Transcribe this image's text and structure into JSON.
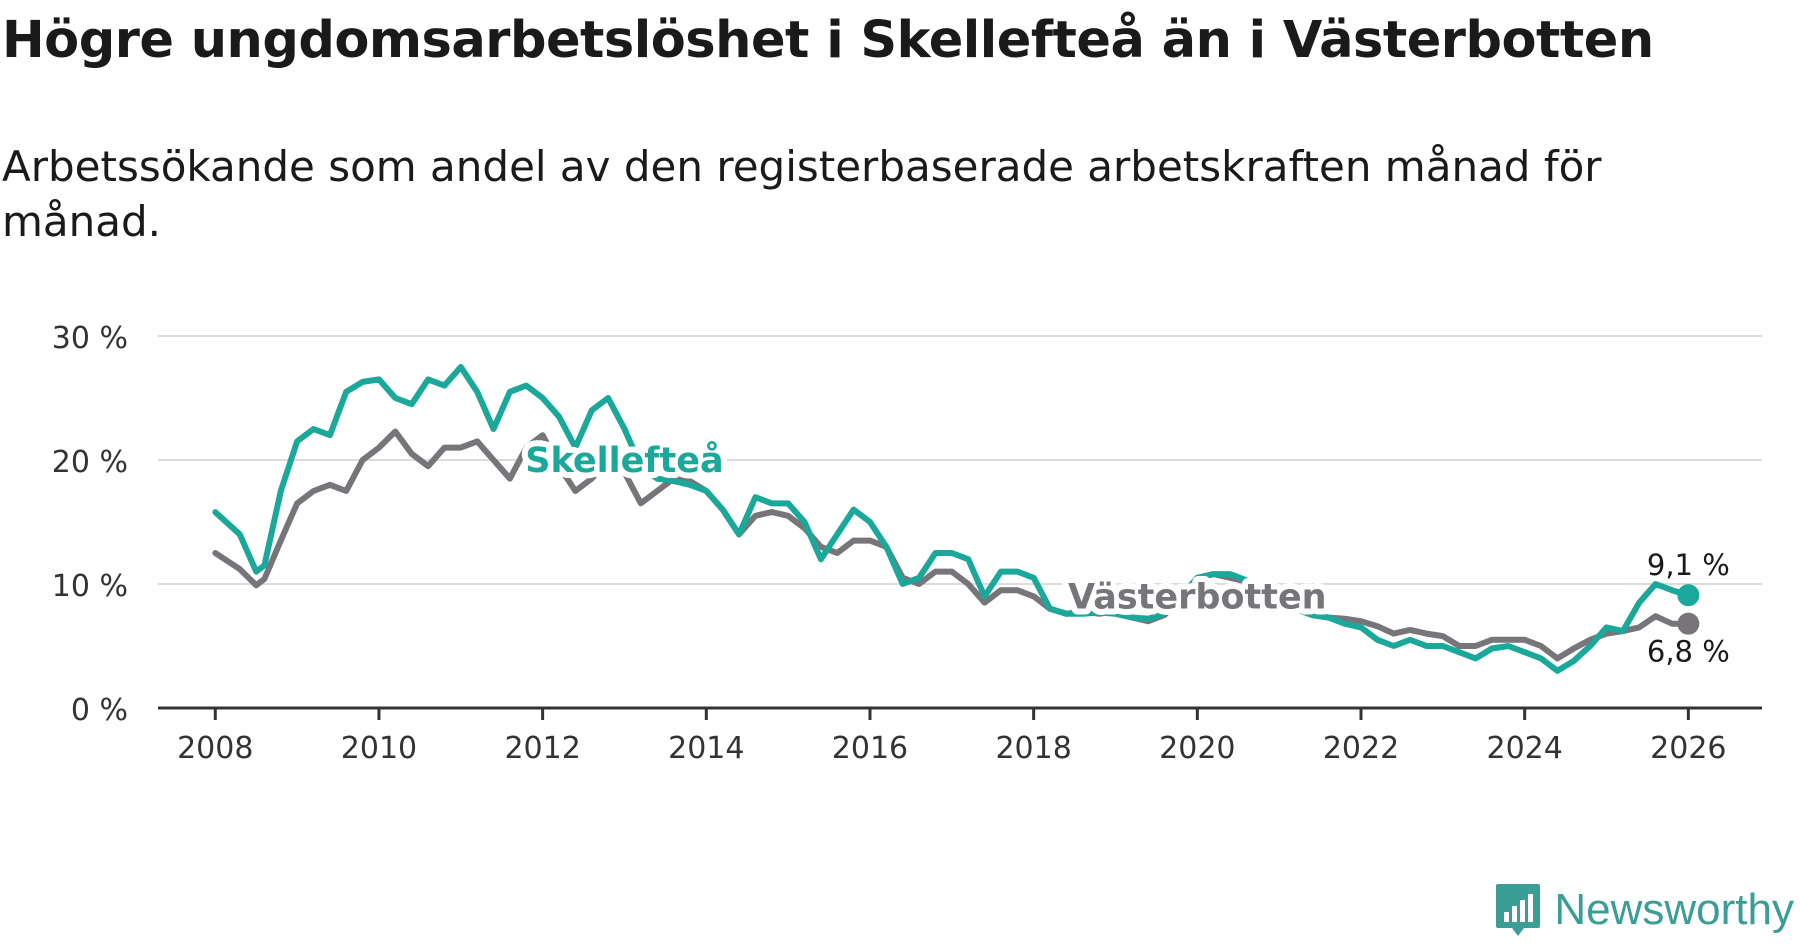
{
  "title": "Högre ungdomsarbetslöshet i Skellefteå än i Västerbotten",
  "subtitle": "Arbetssökande som andel av den registerbaserade arbetskraften månad för månad.",
  "logo": {
    "text": "Newsworthy",
    "icon": "newsworthy-logo-icon"
  },
  "colors": {
    "skelleftea": "#1aa89a",
    "vasterbotten": "#77757a",
    "grid": "#dcdcdc",
    "axis": "#333333"
  },
  "chart_data": {
    "type": "line",
    "title": "Högre ungdomsarbetslöshet i Skellefteå än i Västerbotten",
    "xlabel": "",
    "ylabel": "",
    "xlim": [
      2007.3,
      2026.9
    ],
    "ylim": [
      0,
      30
    ],
    "x_ticks": [
      2008,
      2010,
      2012,
      2014,
      2016,
      2018,
      2020,
      2022,
      2024,
      2026
    ],
    "y_ticks": [
      0,
      10,
      20,
      30
    ],
    "y_tick_labels": [
      "0 %",
      "10 %",
      "20 %",
      "30 %"
    ],
    "grid": true,
    "series": [
      {
        "name": "Västerbotten",
        "label": "Västerbotten",
        "end_label": "6,8 %",
        "x": [
          2008.0,
          2008.3,
          2008.5,
          2008.6,
          2008.8,
          2009.0,
          2009.2,
          2009.4,
          2009.6,
          2009.8,
          2010.0,
          2010.2,
          2010.4,
          2010.6,
          2010.8,
          2011.0,
          2011.2,
          2011.4,
          2011.6,
          2011.8,
          2012.0,
          2012.2,
          2012.4,
          2012.6,
          2012.8,
          2013.0,
          2013.2,
          2013.4,
          2013.6,
          2013.8,
          2014.0,
          2014.2,
          2014.4,
          2014.6,
          2014.8,
          2015.0,
          2015.2,
          2015.4,
          2015.6,
          2015.8,
          2016.0,
          2016.2,
          2016.4,
          2016.6,
          2016.8,
          2017.0,
          2017.2,
          2017.4,
          2017.6,
          2017.8,
          2018.0,
          2018.2,
          2018.4,
          2018.6,
          2018.8,
          2019.0,
          2019.2,
          2019.4,
          2019.6,
          2019.8,
          2020.0,
          2020.2,
          2020.4,
          2020.6,
          2020.8,
          2021.0,
          2021.2,
          2021.4,
          2021.6,
          2021.8,
          2022.0,
          2022.2,
          2022.4,
          2022.6,
          2022.8,
          2023.0,
          2023.2,
          2023.4,
          2023.6,
          2023.8,
          2024.0,
          2024.2,
          2024.4,
          2024.6,
          2024.8,
          2025.0,
          2025.2,
          2025.4,
          2025.6,
          2025.8,
          2026.0
        ],
        "y": [
          12.5,
          11.2,
          9.9,
          10.4,
          13.5,
          16.5,
          17.5,
          18.0,
          17.5,
          20.0,
          21.0,
          22.3,
          20.5,
          19.5,
          21.0,
          21.0,
          21.5,
          20.0,
          18.5,
          21.0,
          22.0,
          19.5,
          17.5,
          18.5,
          20.0,
          19.0,
          16.5,
          17.5,
          18.5,
          18.3,
          17.5,
          16.0,
          14.0,
          15.5,
          15.8,
          15.5,
          14.5,
          13.0,
          12.5,
          13.5,
          13.5,
          13.0,
          10.5,
          10.0,
          11.0,
          11.0,
          10.0,
          8.5,
          9.5,
          9.5,
          9.0,
          8.0,
          7.6,
          7.8,
          7.6,
          7.8,
          7.3,
          7.0,
          7.5,
          9.0,
          10.5,
          10.8,
          10.5,
          10.2,
          9.8,
          9.0,
          8.0,
          7.5,
          7.3,
          7.2,
          7.0,
          6.6,
          6.0,
          6.3,
          6.0,
          5.8,
          5.0,
          5.0,
          5.5,
          5.5,
          5.5,
          5.0,
          4.0,
          4.8,
          5.5,
          6.0,
          6.2,
          6.5,
          7.4,
          6.8,
          6.8
        ]
      },
      {
        "name": "Skellefteå",
        "label": "Skellefteå",
        "end_label": "9,1 %",
        "x": [
          2008.0,
          2008.3,
          2008.5,
          2008.6,
          2008.8,
          2009.0,
          2009.2,
          2009.4,
          2009.6,
          2009.8,
          2010.0,
          2010.2,
          2010.4,
          2010.6,
          2010.8,
          2011.0,
          2011.2,
          2011.4,
          2011.6,
          2011.8,
          2012.0,
          2012.2,
          2012.4,
          2012.6,
          2012.8,
          2013.0,
          2013.2,
          2013.4,
          2013.6,
          2013.8,
          2014.0,
          2014.2,
          2014.4,
          2014.6,
          2014.8,
          2015.0,
          2015.2,
          2015.4,
          2015.6,
          2015.8,
          2016.0,
          2016.2,
          2016.4,
          2016.6,
          2016.8,
          2017.0,
          2017.2,
          2017.4,
          2017.6,
          2017.8,
          2018.0,
          2018.2,
          2018.4,
          2018.6,
          2018.8,
          2019.0,
          2019.2,
          2019.4,
          2019.6,
          2019.8,
          2020.0,
          2020.2,
          2020.4,
          2020.6,
          2020.8,
          2021.0,
          2021.2,
          2021.4,
          2021.6,
          2021.8,
          2022.0,
          2022.2,
          2022.4,
          2022.6,
          2022.8,
          2023.0,
          2023.2,
          2023.4,
          2023.6,
          2023.8,
          2024.0,
          2024.2,
          2024.4,
          2024.6,
          2024.8,
          2025.0,
          2025.2,
          2025.4,
          2025.6,
          2025.8,
          2026.0
        ],
        "y": [
          15.8,
          14.0,
          11.0,
          11.5,
          17.5,
          21.5,
          22.5,
          22.0,
          25.5,
          26.3,
          26.5,
          25.0,
          24.5,
          26.5,
          26.0,
          27.5,
          25.5,
          22.5,
          25.5,
          26.0,
          25.0,
          23.5,
          21.0,
          24.0,
          25.0,
          22.5,
          19.5,
          18.5,
          18.3,
          18.0,
          17.5,
          16.0,
          14.0,
          17.0,
          16.5,
          16.5,
          15.0,
          12.0,
          14.0,
          16.0,
          15.0,
          13.0,
          10.0,
          10.5,
          12.5,
          12.5,
          12.0,
          9.0,
          11.0,
          11.0,
          10.5,
          8.0,
          7.6,
          7.6,
          7.7,
          7.6,
          7.3,
          7.2,
          7.6,
          9.0,
          10.5,
          10.8,
          10.8,
          10.3,
          9.8,
          8.8,
          8.0,
          7.5,
          7.3,
          6.8,
          6.5,
          5.5,
          5.0,
          5.5,
          5.0,
          5.0,
          4.5,
          4.0,
          4.8,
          5.0,
          4.5,
          4.0,
          3.0,
          3.8,
          5.0,
          6.5,
          6.2,
          8.5,
          10.0,
          9.5,
          9.1
        ]
      }
    ]
  }
}
